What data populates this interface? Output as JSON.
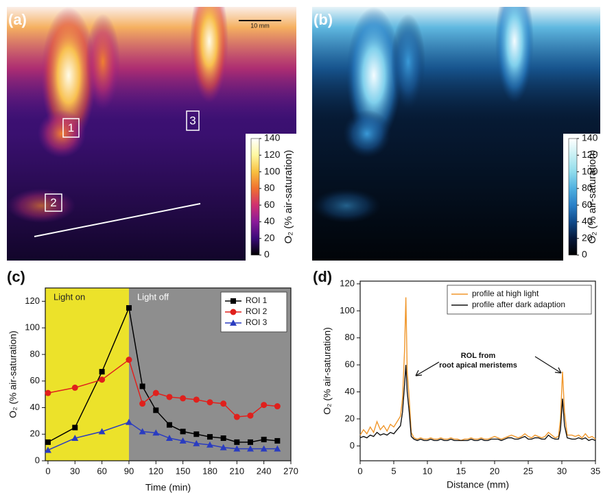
{
  "chart_data": [
    {
      "type": "image",
      "panel_label": "(a)",
      "scale_bar_label": "10 mm",
      "roi_labels": [
        "1",
        "2",
        "3"
      ],
      "colorbar": {
        "label": "O₂ (% air-saturation)",
        "lim": [
          0,
          140
        ],
        "ticks": [
          0,
          20,
          40,
          60,
          80,
          100,
          120,
          140
        ],
        "colors": [
          "#000000",
          "#3a0a78",
          "#8a1a9a",
          "#d03070",
          "#f07030",
          "#f8c040",
          "#fff8a0",
          "#ffffff"
        ]
      }
    },
    {
      "type": "image",
      "panel_label": "(b)",
      "colorbar": {
        "label": "O₂ (% air-saturation)",
        "lim": [
          0,
          140
        ],
        "ticks": [
          0,
          20,
          40,
          60,
          80,
          100,
          120,
          140
        ],
        "colors": [
          "#000000",
          "#06183a",
          "#104a8a",
          "#2a80c8",
          "#50b0e0",
          "#90dcec",
          "#c8f0f4",
          "#ffffff"
        ]
      }
    },
    {
      "type": "line",
      "panel_label": "(c)",
      "x_label": "Time (min)",
      "y_label": "O₂ (% air-saturation)",
      "x": [
        0,
        30,
        60,
        90,
        105,
        120,
        135,
        150,
        165,
        180,
        195,
        210,
        225,
        240,
        255
      ],
      "series": [
        {
          "name": "ROI 1",
          "color": "#000000",
          "marker": "square",
          "values": [
            14,
            25,
            67,
            115,
            56,
            38,
            27,
            22,
            20,
            18,
            17,
            14,
            14,
            16,
            15
          ]
        },
        {
          "name": "ROI 2",
          "color": "#e0201c",
          "marker": "circle",
          "values": [
            51,
            55,
            61,
            76,
            43,
            51,
            48,
            47,
            46,
            44,
            43,
            33,
            34,
            42,
            41
          ]
        },
        {
          "name": "ROI 3",
          "color": "#2a3cc0",
          "marker": "triangle",
          "values": [
            8,
            17,
            22,
            29,
            22,
            21,
            17,
            15,
            13,
            12,
            10,
            9,
            9,
            9,
            9
          ]
        }
      ],
      "spans": [
        {
          "label": "Light on",
          "from": -3,
          "to": 90,
          "color": "#ece22a"
        },
        {
          "label": "Light off",
          "from": 90,
          "to": 270,
          "color": "#8e8e8e"
        }
      ],
      "xlim": [
        -3,
        270
      ],
      "xticks": [
        0,
        30,
        60,
        90,
        120,
        150,
        180,
        210,
        240,
        270
      ],
      "ylim": [
        0,
        130
      ],
      "yticks": [
        0,
        20,
        40,
        60,
        80,
        100,
        120
      ],
      "legend": "upper right"
    },
    {
      "type": "line",
      "panel_label": "(d)",
      "x_label": "Distance (mm)",
      "y_label": "O₂ (% air-saturation)",
      "annotation": [
        "ROL from",
        "root apical meristems"
      ],
      "x": [
        0,
        0.5,
        1,
        1.5,
        2,
        2.5,
        3,
        3.5,
        4,
        4.5,
        5,
        5.5,
        6,
        6.3,
        6.6,
        6.8,
        7.0,
        7.3,
        7.6,
        8,
        8.5,
        9,
        9.5,
        10,
        10.5,
        11,
        11.5,
        12,
        12.5,
        13,
        13.5,
        14,
        14.5,
        15,
        15.5,
        16,
        16.5,
        17,
        17.5,
        18,
        18.5,
        19,
        19.5,
        20,
        20.5,
        21,
        21.5,
        22,
        22.5,
        23,
        23.5,
        24,
        24.5,
        25,
        25.5,
        26,
        26.5,
        27,
        27.5,
        28,
        28.5,
        29,
        29.5,
        29.8,
        30.1,
        30.4,
        30.8,
        31.5,
        32,
        32.5,
        33,
        33.5,
        34,
        34.5,
        35
      ],
      "series": [
        {
          "name": "profile at high light",
          "color": "#f0962a",
          "values": [
            8,
            12,
            9,
            14,
            10,
            18,
            12,
            15,
            11,
            16,
            14,
            18,
            22,
            35,
            70,
            110,
            55,
            35,
            10,
            6,
            5,
            6,
            5,
            5,
            6,
            5,
            5,
            6,
            5,
            5,
            6,
            5,
            5,
            4,
            5,
            5,
            6,
            5,
            5,
            6,
            5,
            5,
            6,
            7,
            6,
            5,
            6,
            7,
            8,
            7,
            6,
            7,
            9,
            7,
            6,
            8,
            7,
            6,
            7,
            10,
            8,
            6,
            7,
            20,
            55,
            25,
            8,
            8,
            7,
            8,
            6,
            9,
            6,
            7,
            5
          ]
        },
        {
          "name": "profile after dark adaption",
          "color": "#111111",
          "values": [
            6,
            7,
            6,
            8,
            7,
            10,
            8,
            9,
            8,
            10,
            9,
            12,
            15,
            25,
            45,
            60,
            40,
            25,
            7,
            5,
            4,
            5,
            4,
            4,
            5,
            4,
            4,
            5,
            4,
            4,
            5,
            4,
            4,
            4,
            4,
            4,
            5,
            4,
            4,
            5,
            4,
            4,
            5,
            5,
            5,
            4,
            5,
            6,
            6,
            5,
            5,
            6,
            7,
            5,
            5,
            6,
            6,
            5,
            5,
            8,
            6,
            5,
            5,
            12,
            35,
            15,
            6,
            5,
            5,
            6,
            5,
            6,
            4,
            5,
            4
          ]
        }
      ],
      "xlim": [
        0,
        35
      ],
      "xticks": [
        0,
        5,
        10,
        15,
        20,
        25,
        30,
        35
      ],
      "ylim": [
        -11,
        122
      ],
      "yticks": [
        0,
        20,
        40,
        60,
        80,
        100,
        120
      ],
      "legend": "upper right"
    }
  ]
}
